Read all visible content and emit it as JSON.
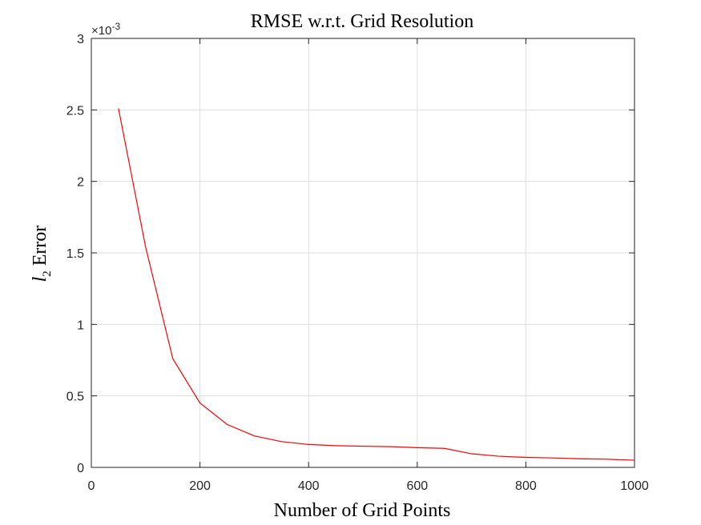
{
  "chart_data": {
    "type": "line",
    "title": "RMSE w.r.t. Grid Resolution",
    "xlabel": "Number of Grid Points",
    "ylabel_base": "l",
    "ylabel_sub": "2",
    "ylabel_rest": " Error",
    "y_exponent_prefix": "×10",
    "y_exponent": "-3",
    "xlim": [
      0,
      1000
    ],
    "ylim": [
      0,
      0.003
    ],
    "xticks": [
      0,
      200,
      400,
      600,
      800,
      1000
    ],
    "xtick_labels": [
      "0",
      "200",
      "400",
      "600",
      "800",
      "1000"
    ],
    "yticks": [
      0,
      0.0005,
      0.001,
      0.0015,
      0.002,
      0.0025,
      0.003
    ],
    "ytick_labels": [
      "0",
      "0.5",
      "1",
      "1.5",
      "2",
      "2.5",
      "3"
    ],
    "grid": true,
    "series": [
      {
        "color": "#ff0000",
        "x": [
          50,
          100,
          150,
          200,
          250,
          300,
          350,
          400,
          450,
          500,
          550,
          600,
          650,
          700,
          750,
          800,
          850,
          900,
          950,
          1000
        ],
        "y": [
          0.00251,
          0.00154,
          0.00076,
          0.00045,
          0.0003,
          0.00022,
          0.00018,
          0.00016,
          0.000152,
          0.000148,
          0.000145,
          0.000138,
          0.000133,
          9.5e-05,
          7.8e-05,
          7e-05,
          6.6e-05,
          6e-05,
          5.7e-05,
          5e-05
        ]
      }
    ]
  }
}
